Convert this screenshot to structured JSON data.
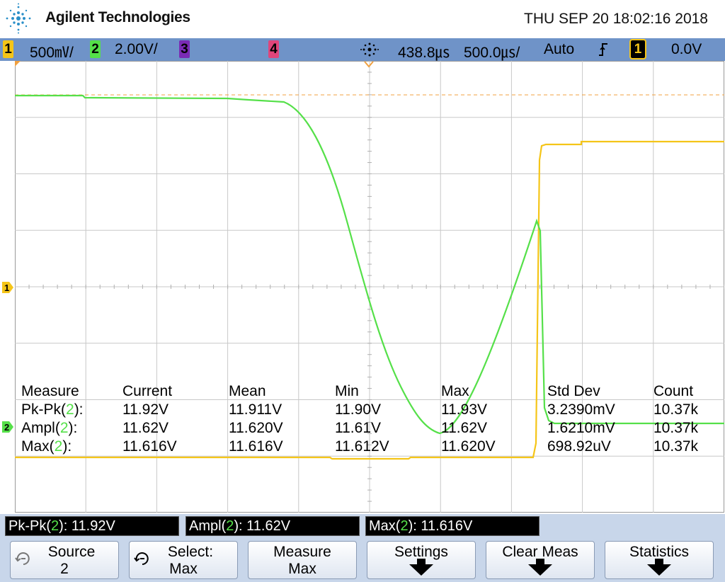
{
  "header": {
    "brand": "Agilent Technologies",
    "datetime": "THU SEP 20 18:02:16 2018"
  },
  "status": {
    "ch1_num": "1",
    "ch1_scale": "500㎷/",
    "ch2_num": "2",
    "ch2_scale": "2.00V/",
    "ch3_num": "3",
    "ch4_num": "4",
    "trigger_delay": "438.8㎲",
    "timebase": "500.0㎲/",
    "trigger_mode": "Auto",
    "trigger_slope_icon": "rising-edge-icon",
    "trigger_source": "1",
    "trigger_level": "0.0V"
  },
  "colors": {
    "ch1": "#f5c518",
    "ch2": "#55e049",
    "ch3": "#7a2bb5",
    "ch4": "#e0457b",
    "statusbar": "#6f93c8"
  },
  "markers": {
    "ch1_ground": "1",
    "ch2_ground": "2"
  },
  "measure_table": {
    "headers": [
      "Measure",
      "Current",
      "Mean",
      "Min",
      "Max",
      "Std Dev",
      "Count"
    ],
    "rows": [
      {
        "name": "Pk-Pk(",
        "ch": "2",
        "tail": "):",
        "current": "11.92V",
        "mean": "11.911V",
        "min": "11.90V",
        "max": "11.93V",
        "std": "3.2390mV",
        "count": "10.37k"
      },
      {
        "name": "Ampl(",
        "ch": "2",
        "tail": "):",
        "current": "11.62V",
        "mean": "11.620V",
        "min": "11.61V",
        "max": "11.62V",
        "std": "1.6210mV",
        "count": "10.37k"
      },
      {
        "name": "Max(",
        "ch": "2",
        "tail": "):",
        "current": "11.616V",
        "mean": "11.616V",
        "min": "11.612V",
        "max": "11.620V",
        "std": "698.92uV",
        "count": "10.37k"
      }
    ]
  },
  "readouts": [
    {
      "name": "Pk-Pk(",
      "ch": "2",
      "value": "): 11.92V"
    },
    {
      "name": "Ampl(",
      "ch": "2",
      "value": "): 11.62V"
    },
    {
      "name": "Max(",
      "ch": "2",
      "value": "): 11.616V"
    }
  ],
  "softkeys": [
    {
      "line1": "Source",
      "line2": "2",
      "icon": "rotate-knob-icon"
    },
    {
      "line1": "Select:",
      "line2": "Max",
      "icon": "rotate-knob-icon"
    },
    {
      "line1": "Measure",
      "line2": "Max",
      "icon": ""
    },
    {
      "line1": "Settings",
      "line2": "",
      "icon": "submenu-arrow-icon"
    },
    {
      "line1": "Clear Meas",
      "line2": "",
      "icon": "submenu-arrow-icon"
    },
    {
      "line1": "Statistics",
      "line2": "",
      "icon": "submenu-arrow-icon"
    }
  ]
}
